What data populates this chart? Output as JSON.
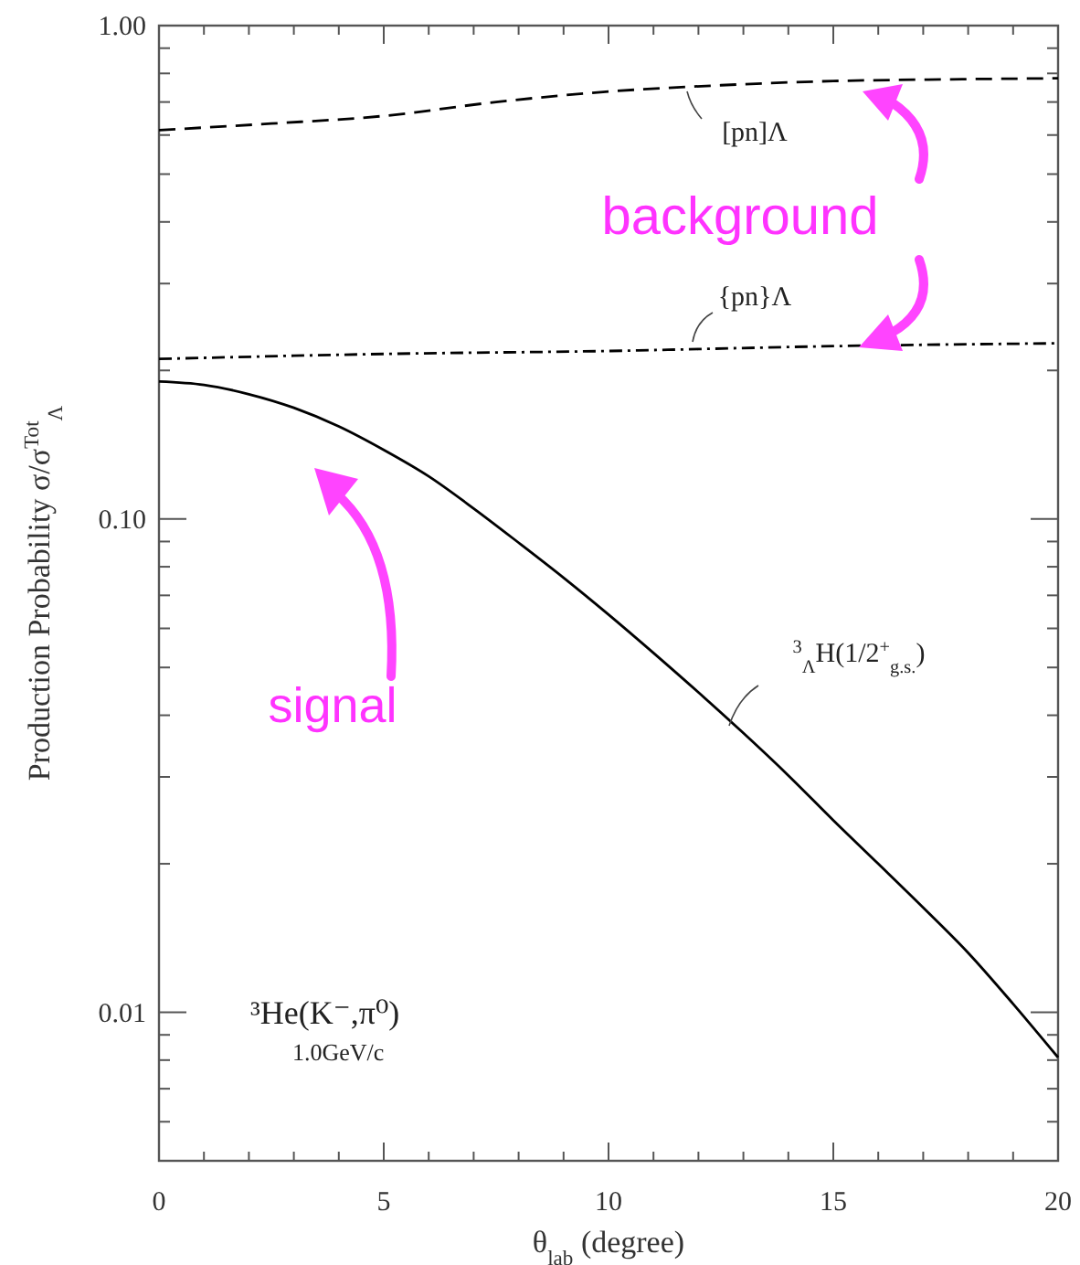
{
  "chart_data": {
    "type": "line",
    "xlabel": "θ$_{lab}$ (degree)",
    "ylabel": "Production Probability  σ/σ$^{Tot}$$_{Λ}$",
    "xlim": [
      0,
      20
    ],
    "ylim": [
      0.005,
      1
    ],
    "log": "y",
    "grid": false,
    "marker": "none",
    "xticks": [
      0,
      {
        "value": 1,
        "label": null
      },
      {
        "value": 2,
        "label": null
      },
      {
        "value": 3,
        "label": null
      },
      {
        "value": 4,
        "label": null
      },
      5,
      {
        "value": 6,
        "label": null
      },
      {
        "value": 7,
        "label": null
      },
      {
        "value": 8,
        "label": null
      },
      {
        "value": 9,
        "label": null
      },
      10,
      {
        "value": 11,
        "label": null
      },
      {
        "value": 12,
        "label": null
      },
      {
        "value": 13,
        "label": null
      },
      {
        "value": 14,
        "label": null
      },
      15,
      {
        "value": 16,
        "label": null
      },
      {
        "value": 17,
        "label": null
      },
      {
        "value": 18,
        "label": null
      },
      {
        "value": 19,
        "label": null
      },
      20
    ],
    "yticks": [
      {
        "value": 0.006,
        "label": null
      },
      {
        "value": 0.007,
        "label": null
      },
      {
        "value": 0.008,
        "label": null
      },
      {
        "value": 0.009,
        "label": null
      },
      0.01,
      {
        "value": 0.02,
        "label": null
      },
      {
        "value": 0.03,
        "label": null
      },
      {
        "value": 0.04,
        "label": null
      },
      {
        "value": 0.05,
        "label": null
      },
      {
        "value": 0.06,
        "label": null
      },
      {
        "value": 0.07,
        "label": null
      },
      {
        "value": 0.08,
        "label": null
      },
      {
        "value": 0.09,
        "label": null
      },
      {
        "value": 0.1,
        "label": "0.10"
      },
      {
        "value": 0.2,
        "label": null
      },
      {
        "value": 0.3,
        "label": null
      },
      {
        "value": 0.4,
        "label": null
      },
      {
        "value": 0.5,
        "label": null
      },
      {
        "value": 0.6,
        "label": null
      },
      {
        "value": 0.7,
        "label": null
      },
      {
        "value": 0.8,
        "label": null
      },
      {
        "value": 0.9,
        "label": null
      },
      {
        "value": 1,
        "label": "1.00"
      }
    ],
    "series": [
      {
        "color": "#000000",
        "line_style": "dashed",
        "x": [
          0,
          2.5,
          5,
          7.5,
          10,
          12.5,
          15,
          17.5,
          20
        ],
        "values": [
          0.614,
          0.633,
          0.656,
          0.7,
          0.735,
          0.757,
          0.772,
          0.778,
          0.782
        ]
      },
      {
        "color": "#000000",
        "line_style": "dashdot",
        "x": [
          0,
          5,
          10,
          15,
          20
        ],
        "values": [
          0.211,
          0.216,
          0.219,
          0.224,
          0.227
        ]
      },
      {
        "color": "#000000",
        "line_style": "solid",
        "x": [
          0,
          1,
          2,
          3,
          4,
          5,
          6,
          7,
          8,
          9,
          10,
          11,
          12,
          13,
          14,
          15,
          16,
          17,
          18,
          19,
          20
        ],
        "values": [
          0.19,
          0.187,
          0.179,
          0.168,
          0.154,
          0.138,
          0.122,
          0.105,
          0.0895,
          0.076,
          0.064,
          0.0535,
          0.0445,
          0.0368,
          0.0302,
          0.0245,
          0.02,
          0.0163,
          0.0132,
          0.0104,
          0.0081
        ]
      }
    ],
    "annotations": [
      "[pn]Λ",
      "{pn}Λ",
      "$^{3}$$_{Λ}$H(1/2$^{+}$$_{g.s.}$)",
      "background",
      "signal",
      "³He(K⁻,π⁰)",
      "1.0GeV/c"
    ]
  }
}
